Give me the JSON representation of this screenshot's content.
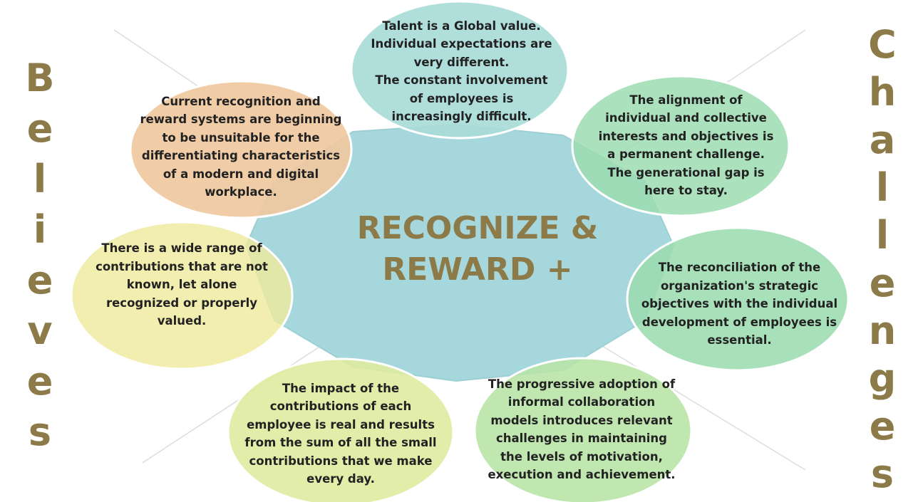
{
  "colors": {
    "center_fill": "#a6d7dc",
    "title_color": "#8c7a48",
    "top_bubble": "#a9dcd8",
    "orange_bubble": "#f0c9a0",
    "green_bubble": "#9cdcb0",
    "yellow_bubble": "#eeea9e",
    "lime_bubble": "#dfeba0",
    "light_green_bubble": "#b8e4a6",
    "side_letters": "#8c7a48"
  },
  "center": {
    "line1": "RECOGNIZE &",
    "line2": "REWARD +"
  },
  "left_word": [
    "B",
    "e",
    "l",
    "i",
    "e",
    "v",
    "e",
    "s"
  ],
  "right_word": [
    "C",
    "h",
    "a",
    "l",
    "l",
    "e",
    "n",
    "g",
    "e",
    "s"
  ],
  "bubbles": {
    "top": "Talent is a Global value.\nIndividual expectations are\nvery different.\nThe constant involvement\nof employees is\nincreasingly difficult.",
    "top_left": "Current recognition and\nreward systems are beginning\nto be unsuitable for the\ndifferentiating characteristics\nof a modern and digital\nworkplace.",
    "left": "There is a wide range of\ncontributions that are not\nknown, let alone\nrecognized or properly\nvalued.",
    "bottom_left": "The impact of the\ncontributions of each\nemployee is real and results\nfrom the sum of all the small\ncontributions that we make\nevery day.",
    "top_right": "The alignment of\nindividual and collective\ninterests and objectives is\na permanent challenge.\nThe generational gap is\nhere to stay.",
    "right": "The reconciliation of the\norganization's strategic\nobjectives with the individual\ndevelopment of employees is\nessential.",
    "bottom_right": "The progressive adoption of\ninformal collaboration\nmodels introduces relevant\nchallenges in maintaining\nthe levels of motivation,\nexecution and achievement."
  }
}
